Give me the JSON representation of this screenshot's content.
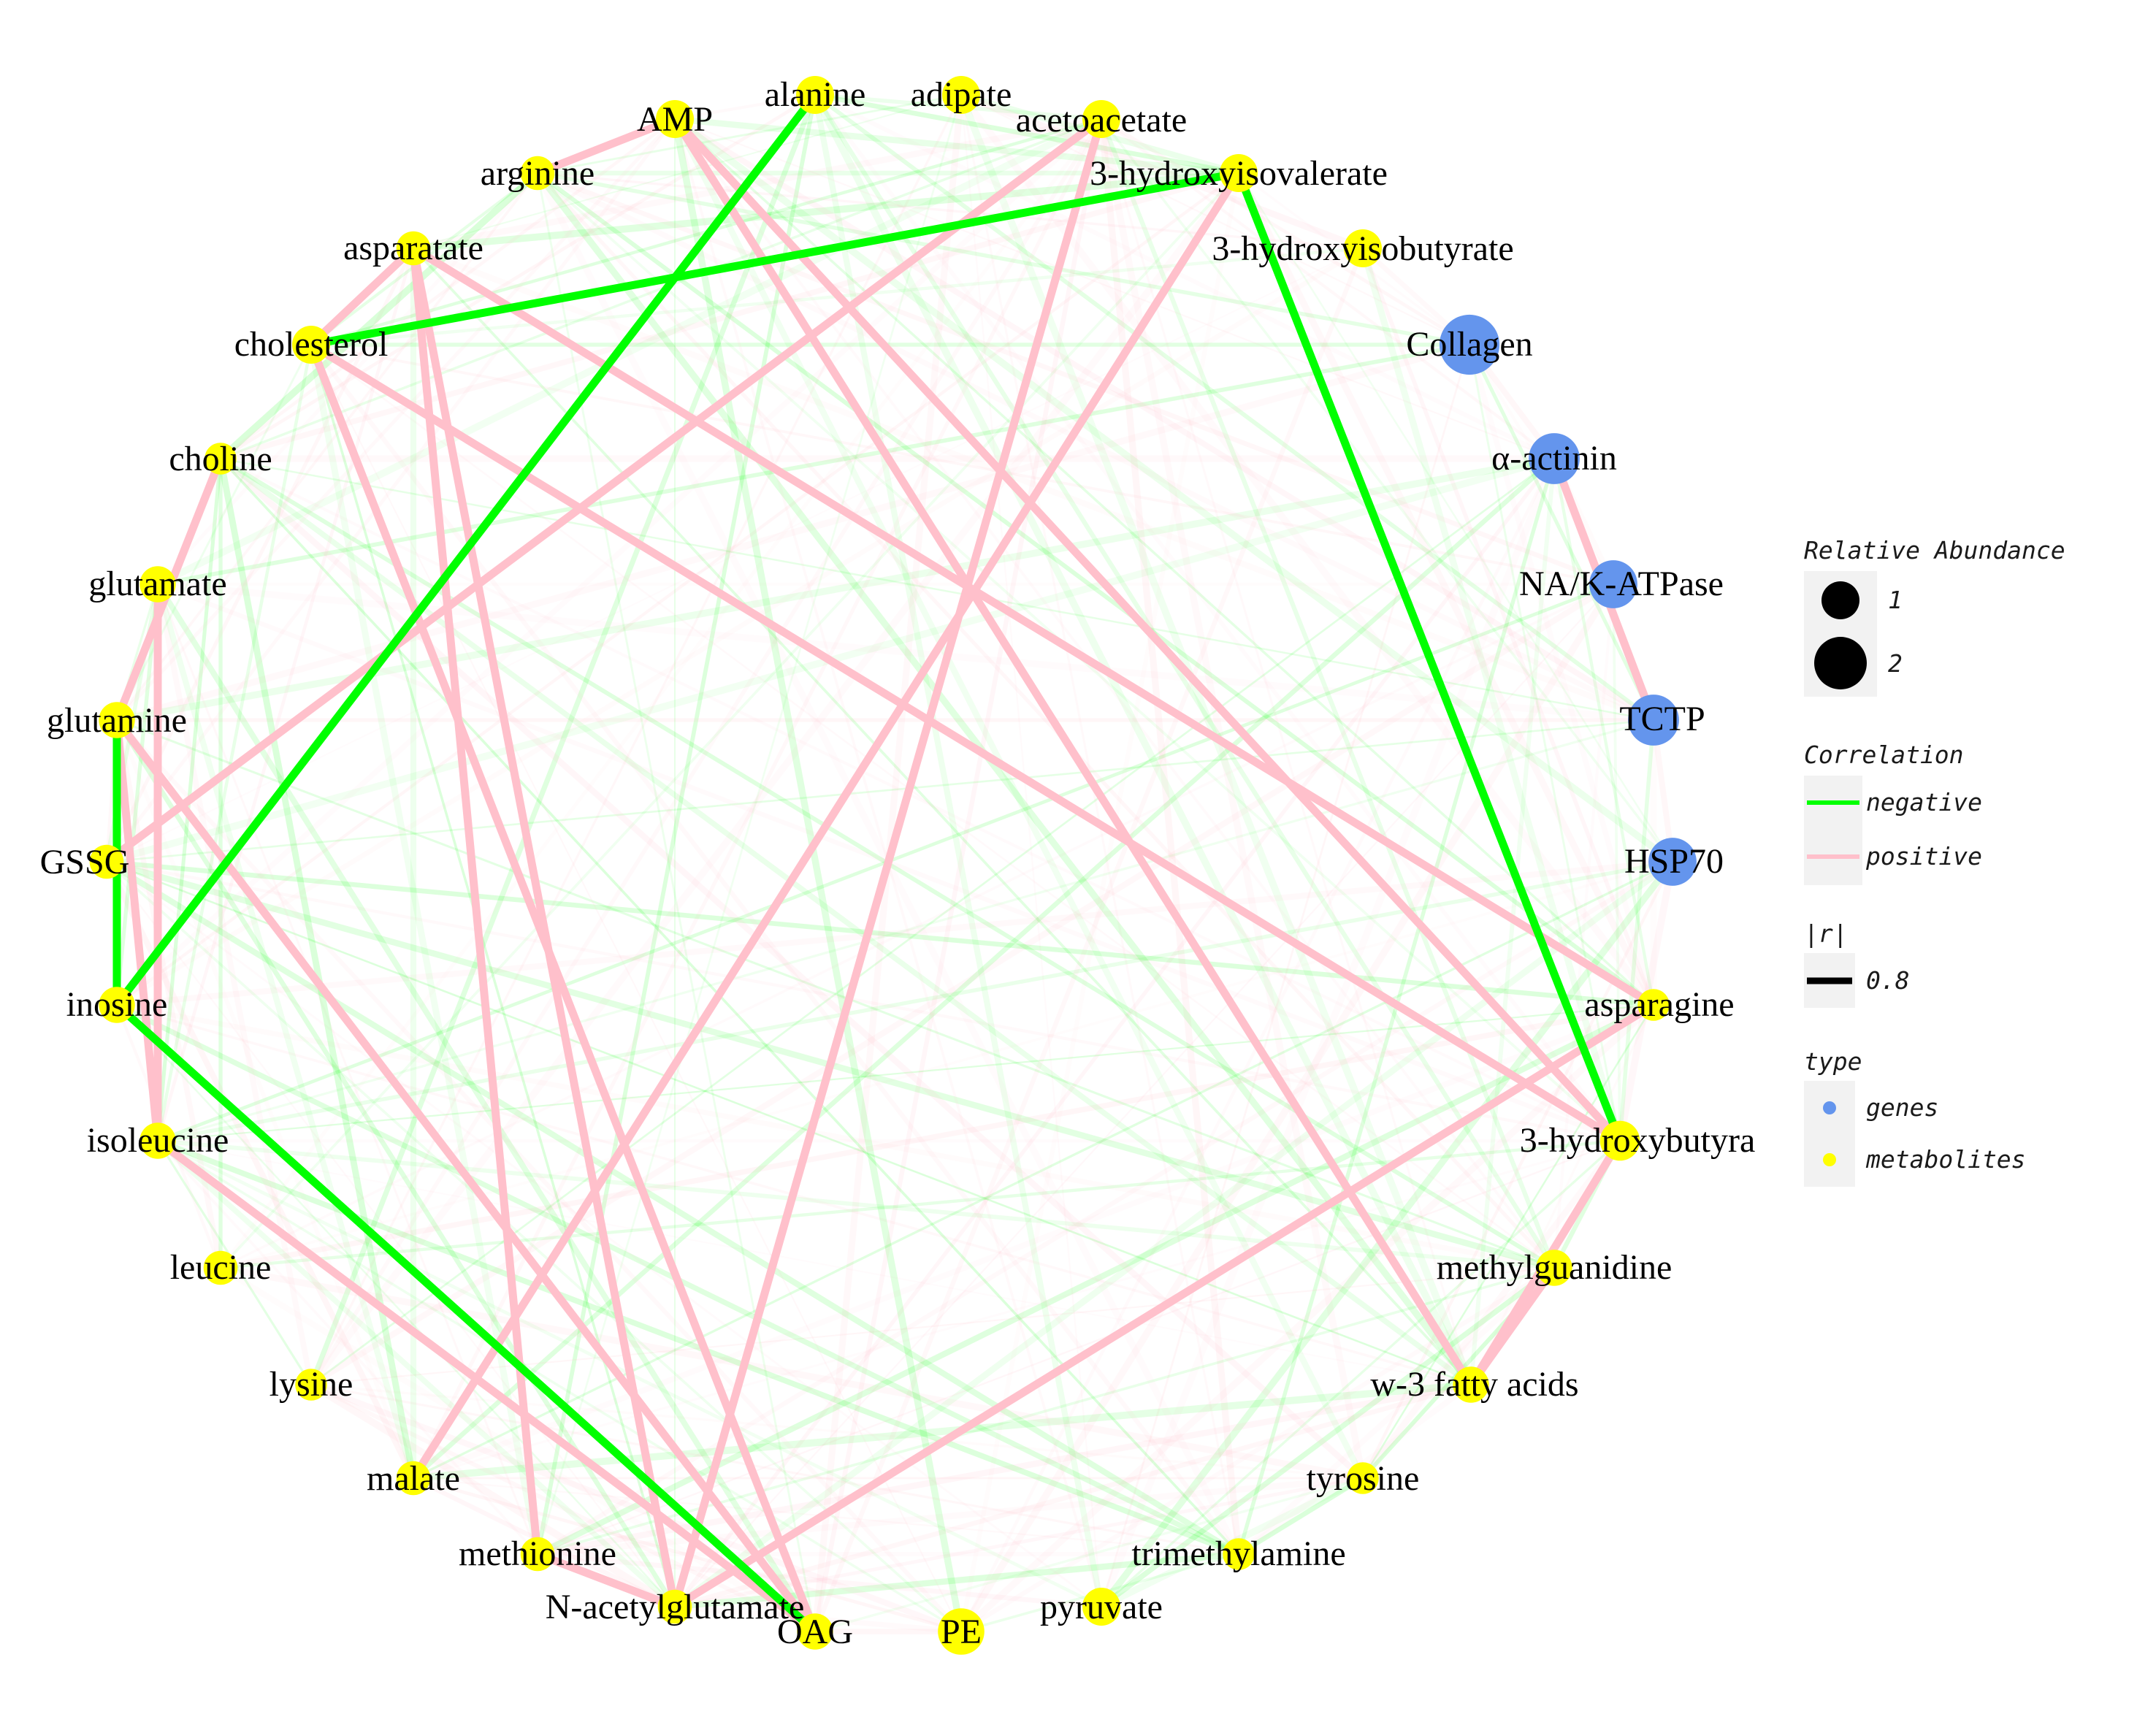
{
  "colors": {
    "negative": "#00ff00",
    "positive": "#ffc0cb",
    "genes": "#6495ed",
    "metabolites": "#ffff00",
    "legend_key_bg": "#f2f2f2"
  },
  "nodes": [
    {
      "id": "alanine",
      "type": "metabolites",
      "size": 1
    },
    {
      "id": "adipate",
      "type": "metabolites",
      "size": 1
    },
    {
      "id": "acetoacetate",
      "type": "metabolites",
      "size": 1
    },
    {
      "id": "3-hydroxyisovalerate",
      "type": "metabolites",
      "size": 1
    },
    {
      "id": "3-hydroxyisobutyrate",
      "type": "metabolites",
      "size": 1
    },
    {
      "id": "Collagen",
      "type": "genes",
      "size": 2.5
    },
    {
      "id": "α-actinin",
      "type": "genes",
      "size": 1.8
    },
    {
      "id": "NA/K-ATPase",
      "type": "genes",
      "size": 1.6
    },
    {
      "id": "TCTP",
      "type": "genes",
      "size": 1.8
    },
    {
      "id": "HSP70",
      "type": "genes",
      "size": 1.6
    },
    {
      "id": "asparagine",
      "type": "metabolites",
      "size": 0.7
    },
    {
      "id": "3-hydroxybutyra",
      "type": "metabolites",
      "size": 1.1
    },
    {
      "id": "methylguanidine",
      "type": "metabolites",
      "size": 0.9
    },
    {
      "id": "w-3 fatty acids",
      "type": "metabolites",
      "size": 0.9
    },
    {
      "id": "tyrosine",
      "type": "metabolites",
      "size": 0.7
    },
    {
      "id": "trimethylamine",
      "type": "metabolites",
      "size": 0.7
    },
    {
      "id": "pyruvate",
      "type": "metabolites",
      "size": 1
    },
    {
      "id": "PE",
      "type": "metabolites",
      "size": 1.5
    },
    {
      "id": "OAG",
      "type": "metabolites",
      "size": 0.9
    },
    {
      "id": "N-acetylglutamate",
      "type": "metabolites",
      "size": 0.8
    },
    {
      "id": "methionine",
      "type": "metabolites",
      "size": 0.8
    },
    {
      "id": "malate",
      "type": "metabolites",
      "size": 0.8
    },
    {
      "id": "lysine",
      "type": "metabolites",
      "size": 0.7
    },
    {
      "id": "leucine",
      "type": "metabolites",
      "size": 0.8
    },
    {
      "id": "isoleucine",
      "type": "metabolites",
      "size": 0.9
    },
    {
      "id": "inosine",
      "type": "metabolites",
      "size": 0.9
    },
    {
      "id": "GSSG",
      "type": "metabolites",
      "size": 0.8
    },
    {
      "id": "glutamine",
      "type": "metabolites",
      "size": 0.9
    },
    {
      "id": "glutamate",
      "type": "metabolites",
      "size": 0.9
    },
    {
      "id": "choline",
      "type": "metabolites",
      "size": 0.7
    },
    {
      "id": "cholesterol",
      "type": "metabolites",
      "size": 1
    },
    {
      "id": "asparatate",
      "type": "metabolites",
      "size": 0.8
    },
    {
      "id": "arginine",
      "type": "metabolites",
      "size": 0.8
    },
    {
      "id": "AMP",
      "type": "metabolites",
      "size": 1
    }
  ],
  "edges": [
    {
      "source": "alanine",
      "target": "inosine",
      "correlation": "negative",
      "strong": true
    },
    {
      "source": "3-hydroxyisovalerate",
      "target": "cholesterol",
      "correlation": "negative",
      "strong": true
    },
    {
      "source": "3-hydroxyisovalerate",
      "target": "3-hydroxybutyra",
      "correlation": "negative",
      "strong": true
    },
    {
      "source": "inosine",
      "target": "OAG",
      "correlation": "negative",
      "strong": true
    },
    {
      "source": "glutamine",
      "target": "inosine",
      "correlation": "negative",
      "strong": true
    },
    {
      "source": "AMP",
      "target": "arginine",
      "correlation": "positive",
      "strong": true
    },
    {
      "source": "AMP",
      "target": "3-hydroxybutyra",
      "correlation": "positive",
      "strong": true
    },
    {
      "source": "AMP",
      "target": "w-3 fatty acids",
      "correlation": "positive",
      "strong": true
    },
    {
      "source": "acetoacetate",
      "target": "GSSG",
      "correlation": "positive",
      "strong": true
    },
    {
      "source": "acetoacetate",
      "target": "N-acetylglutamate",
      "correlation": "positive",
      "strong": true
    },
    {
      "source": "3-hydroxyisovalerate",
      "target": "malate",
      "correlation": "positive",
      "strong": true
    },
    {
      "source": "asparatate",
      "target": "asparagine",
      "correlation": "positive",
      "strong": true
    },
    {
      "source": "asparatate",
      "target": "N-acetylglutamate",
      "correlation": "positive",
      "strong": true
    },
    {
      "source": "asparatate",
      "target": "methionine",
      "correlation": "positive",
      "strong": true
    },
    {
      "source": "cholesterol",
      "target": "3-hydroxybutyra",
      "correlation": "positive",
      "strong": true
    },
    {
      "source": "cholesterol",
      "target": "OAG",
      "correlation": "positive",
      "strong": true
    },
    {
      "source": "choline",
      "target": "glutamine",
      "correlation": "positive",
      "strong": true
    },
    {
      "source": "glutamate",
      "target": "isoleucine",
      "correlation": "positive",
      "strong": true
    },
    {
      "source": "glutamine",
      "target": "isoleucine",
      "correlation": "positive",
      "strong": true
    },
    {
      "source": "glutamine",
      "target": "OAG",
      "correlation": "positive",
      "strong": true
    },
    {
      "source": "isoleucine",
      "target": "OAG",
      "correlation": "positive",
      "strong": true
    },
    {
      "source": "methionine",
      "target": "N-acetylglutamate",
      "correlation": "positive",
      "strong": true
    },
    {
      "source": "asparagine",
      "target": "N-acetylglutamate",
      "correlation": "positive",
      "strong": true
    },
    {
      "source": "α-actinin",
      "target": "TCTP",
      "correlation": "positive",
      "strong": true
    },
    {
      "source": "3-hydroxybutyra",
      "target": "w-3 fatty acids",
      "correlation": "positive",
      "strong": true
    },
    {
      "source": "methylguanidine",
      "target": "w-3 fatty acids",
      "correlation": "positive",
      "strong": true
    },
    {
      "source": "cholesterol",
      "target": "asparatate",
      "correlation": "positive",
      "strong": true
    }
  ],
  "legend": {
    "size_title": "Relative Abundance",
    "size_items": [
      {
        "label": "1",
        "value": 1
      },
      {
        "label": "2",
        "value": 2
      }
    ],
    "corr_title": "Correlation",
    "corr_items": [
      {
        "label": "negative",
        "key": "negative"
      },
      {
        "label": "positive",
        "key": "positive"
      }
    ],
    "r_title": "|r|",
    "r_items": [
      {
        "label": "0.8"
      }
    ],
    "type_title": "type",
    "type_items": [
      {
        "label": "genes",
        "key": "genes"
      },
      {
        "label": "metabolites",
        "key": "metabolites"
      }
    ]
  }
}
